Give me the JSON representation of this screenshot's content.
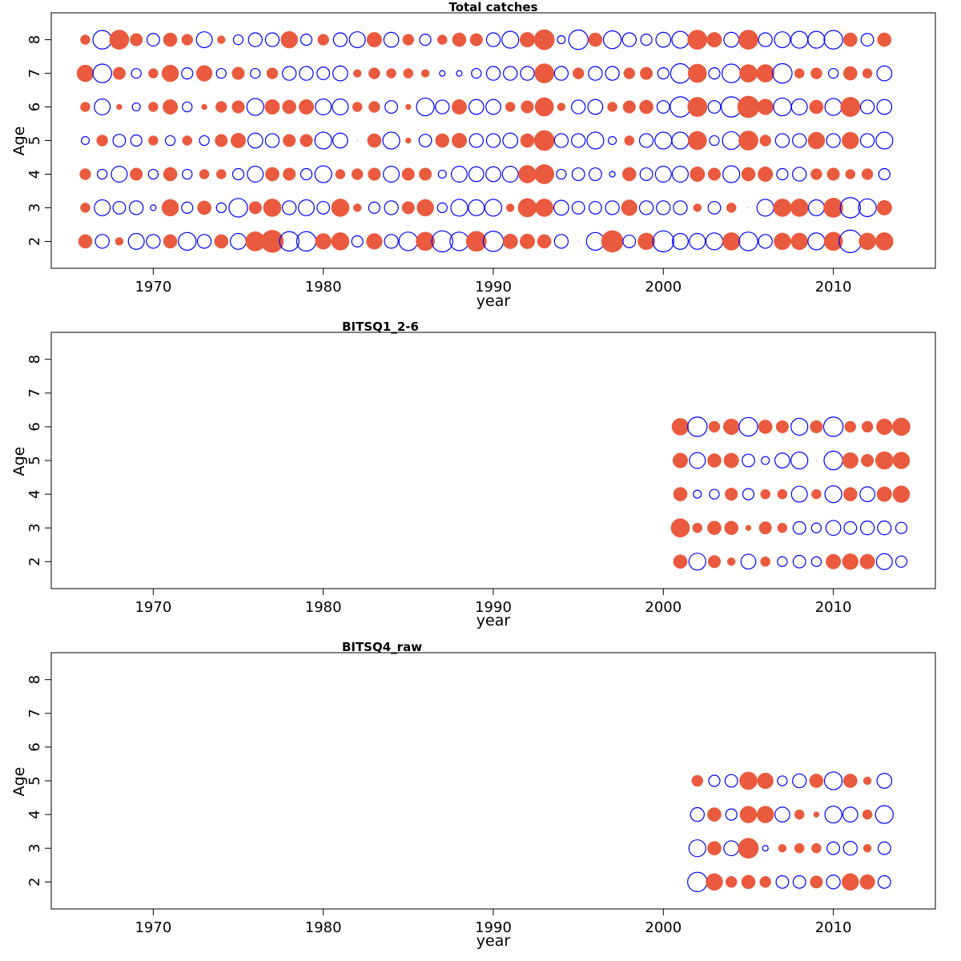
{
  "colors": {
    "positive": "#E95A3E",
    "negative": "#0000FF",
    "frame": "#000000"
  },
  "chart_data": [
    {
      "type": "scatter",
      "title": "Total catches",
      "xlabel": "year",
      "ylabel": "Age",
      "xlim": [
        1964,
        2016
      ],
      "ylim": [
        1.2,
        8.8
      ],
      "xticks": [
        1970,
        1980,
        1990,
        2000,
        2010
      ],
      "yticks": [
        2,
        3,
        4,
        5,
        6,
        7,
        8
      ],
      "grid": false,
      "x": [
        1966,
        1967,
        1968,
        1969,
        1970,
        1971,
        1972,
        1973,
        1974,
        1975,
        1976,
        1977,
        1978,
        1979,
        1980,
        1981,
        1982,
        1983,
        1984,
        1985,
        1986,
        1987,
        1988,
        1989,
        1990,
        1991,
        1992,
        1993,
        1994,
        1995,
        1996,
        1997,
        1998,
        1999,
        2000,
        2001,
        2002,
        2003,
        2004,
        2005,
        2006,
        2007,
        2008,
        2009,
        2010,
        2011,
        2012,
        2013
      ],
      "ages": [
        2,
        3,
        4,
        5,
        6,
        7,
        8
      ],
      "residuals": [
        [
          0.6,
          -0.6,
          0.2,
          -0.8,
          -0.6,
          0.6,
          -1.0,
          -0.6,
          0.6,
          -0.8,
          1.2,
          1.6,
          -1.2,
          -1.2,
          0.8,
          1.0,
          -0.4,
          0.8,
          -0.6,
          -1.1,
          1.1,
          -1.4,
          -1.1,
          1.3,
          -1.3,
          0.7,
          0.7,
          0.6,
          -0.6,
          0.0,
          -1.0,
          1.5,
          -0.5,
          0.9,
          -1.4,
          -0.8,
          -0.8,
          -0.9,
          1.0,
          -1.1,
          -0.6,
          0.9,
          0.9,
          -0.9,
          1.1,
          -1.6,
          0.9,
          1.0
        ],
        [
          0.3,
          -0.8,
          -0.5,
          -0.6,
          -0.1,
          0.9,
          -0.4,
          0.6,
          -0.3,
          -1.1,
          0.5,
          1.0,
          -0.6,
          -0.8,
          -0.5,
          1.0,
          0.2,
          -0.4,
          -0.6,
          0.5,
          0.9,
          -0.3,
          -0.9,
          -0.8,
          -0.9,
          0.2,
          1.1,
          1.0,
          -0.7,
          -0.5,
          -0.5,
          -0.6,
          0.8,
          -0.6,
          -0.6,
          -0.6,
          0.2,
          -0.5,
          0.3,
          0.0,
          -0.9,
          1.0,
          1.0,
          -0.8,
          1.2,
          -1.3,
          -1.0,
          0.7
        ],
        [
          0.4,
          -0.3,
          -0.8,
          0.5,
          -0.3,
          0.6,
          -0.3,
          0.3,
          0.3,
          -0.4,
          -0.8,
          0.6,
          0.5,
          -0.4,
          -0.9,
          0.3,
          0.4,
          0.5,
          -0.8,
          0.5,
          0.5,
          -0.2,
          -0.8,
          -0.7,
          -0.7,
          -0.8,
          1.0,
          1.2,
          -0.3,
          -0.5,
          -0.5,
          -0.1,
          0.6,
          -0.5,
          -0.8,
          -0.8,
          0.7,
          0.5,
          -0.9,
          0.6,
          0.7,
          -0.4,
          -0.6,
          0.4,
          0.5,
          0.3,
          0.4,
          -0.4
        ],
        [
          -0.2,
          0.4,
          -0.5,
          -0.4,
          0.3,
          -0.3,
          0.3,
          -0.3,
          0.5,
          0.7,
          -0.7,
          -0.6,
          0.5,
          0.5,
          -0.9,
          -0.7,
          0.0,
          0.6,
          -0.9,
          0.1,
          -0.5,
          0.6,
          0.7,
          -0.6,
          -0.6,
          -0.7,
          0.6,
          1.3,
          -0.6,
          -0.6,
          -0.9,
          -0.2,
          0.3,
          -0.6,
          -0.9,
          -0.9,
          1.1,
          -0.3,
          -1.0,
          1.2,
          0.4,
          -0.6,
          -0.6,
          0.9,
          -0.6,
          0.9,
          -0.6,
          -0.9
        ],
        [
          0.3,
          -0.8,
          0.1,
          -0.2,
          0.3,
          0.7,
          -0.3,
          0.1,
          0.4,
          0.5,
          -0.9,
          0.7,
          0.6,
          0.7,
          -0.8,
          -0.8,
          0.3,
          0.4,
          -0.5,
          0.1,
          -1.0,
          -0.6,
          0.7,
          -0.7,
          -0.7,
          0.3,
          0.5,
          1.1,
          0.2,
          -0.6,
          -0.7,
          0.3,
          0.5,
          0.6,
          -0.5,
          -1.3,
          1.2,
          -0.5,
          -1.3,
          1.5,
          0.8,
          -1.0,
          -0.8,
          0.6,
          -0.9,
          1.2,
          -0.6,
          -0.7
        ],
        [
          0.9,
          -1.1,
          0.5,
          -0.3,
          0.3,
          0.9,
          -0.4,
          0.8,
          -0.3,
          0.5,
          -0.3,
          0.4,
          -0.6,
          -0.6,
          -0.5,
          -0.7,
          0.2,
          0.4,
          0.3,
          0.3,
          0.2,
          -0.1,
          -0.1,
          -0.3,
          -0.6,
          -0.6,
          -0.6,
          1.2,
          -0.6,
          0.4,
          -0.6,
          -0.6,
          0.4,
          0.5,
          -0.4,
          -1.2,
          1.1,
          -0.4,
          -1.1,
          1.0,
          1.0,
          -1.2,
          0.3,
          0.4,
          -0.3,
          0.6,
          0.3,
          -0.7
        ],
        [
          0.3,
          -1.1,
          1.2,
          0.5,
          -0.5,
          0.6,
          0.4,
          -0.8,
          0.2,
          -0.3,
          -0.6,
          -0.6,
          0.9,
          -0.4,
          0.4,
          -0.6,
          -0.8,
          0.7,
          -0.7,
          0.4,
          -0.4,
          0.3,
          0.6,
          0.5,
          -0.6,
          -0.9,
          0.7,
          1.3,
          -0.2,
          -1.2,
          0.6,
          -1.0,
          -0.6,
          -0.4,
          -0.7,
          -0.9,
          1.2,
          0.7,
          -0.7,
          1.2,
          -0.6,
          -0.8,
          -0.9,
          -0.9,
          -1.1,
          0.6,
          -0.5,
          0.6
        ]
      ]
    },
    {
      "type": "scatter",
      "title": "BITSQ1_2-6",
      "xlabel": "year",
      "ylabel": "Age",
      "xlim": [
        1964,
        2016
      ],
      "ylim": [
        1.2,
        8.8
      ],
      "xticks": [
        1970,
        1980,
        1990,
        2000,
        2010
      ],
      "yticks": [
        2,
        3,
        4,
        5,
        6,
        7,
        8
      ],
      "grid": false,
      "x": [
        2001,
        2002,
        2003,
        2004,
        2005,
        2006,
        2007,
        2008,
        2009,
        2010,
        2011,
        2012,
        2013,
        2014
      ],
      "ages": [
        2,
        3,
        4,
        5,
        6
      ],
      "residuals": [
        [
          0.6,
          -0.9,
          0.5,
          0.2,
          -0.7,
          0.3,
          -0.3,
          -0.5,
          -0.3,
          0.7,
          0.8,
          0.7,
          -0.8,
          -0.4
        ],
        [
          1.1,
          0.3,
          0.6,
          0.6,
          0.1,
          0.5,
          0.3,
          -0.5,
          -0.3,
          -0.7,
          -0.5,
          -0.6,
          -0.6,
          -0.4
        ],
        [
          0.6,
          -0.2,
          -0.3,
          0.5,
          -0.4,
          0.3,
          0.3,
          -0.8,
          0.3,
          -0.9,
          0.6,
          -0.7,
          0.7,
          0.9
        ],
        [
          0.7,
          -0.8,
          0.6,
          0.7,
          -0.5,
          -0.2,
          -0.7,
          -0.9,
          0.0,
          -1.1,
          0.8,
          0.5,
          1.0,
          0.9
        ],
        [
          0.9,
          -1.2,
          0.4,
          0.8,
          -1.1,
          0.6,
          0.5,
          -0.9,
          0.5,
          -1.2,
          0.4,
          0.4,
          0.8,
          1.0
        ]
      ]
    },
    {
      "type": "scatter",
      "title": "BITSQ4_raw",
      "xlabel": "year",
      "ylabel": "Age",
      "xlim": [
        1964,
        2016
      ],
      "ylim": [
        1.2,
        8.8
      ],
      "xticks": [
        1970,
        1980,
        1990,
        2000,
        2010
      ],
      "yticks": [
        2,
        3,
        4,
        5,
        6,
        7,
        8
      ],
      "grid": false,
      "x": [
        2002,
        2003,
        2004,
        2005,
        2006,
        2007,
        2008,
        2009,
        2010,
        2011,
        2012,
        2013
      ],
      "ages": [
        2,
        3,
        4,
        5
      ],
      "residuals": [
        [
          -1.2,
          0.9,
          0.4,
          0.6,
          0.4,
          -0.5,
          -0.5,
          0.5,
          -0.6,
          0.9,
          0.7,
          -0.5
        ],
        [
          -0.9,
          0.6,
          -0.7,
          1.3,
          -0.1,
          0.2,
          0.3,
          0.3,
          -0.5,
          -0.6,
          0.2,
          -0.5
        ],
        [
          -0.6,
          0.6,
          -0.4,
          0.9,
          0.9,
          -0.7,
          0.3,
          0.1,
          -0.9,
          -0.7,
          0.3,
          -1.0
        ],
        [
          0.4,
          -0.4,
          -0.5,
          1.0,
          0.8,
          -0.3,
          -0.6,
          0.6,
          -1.0,
          0.6,
          0.2,
          -0.7
        ]
      ]
    }
  ]
}
